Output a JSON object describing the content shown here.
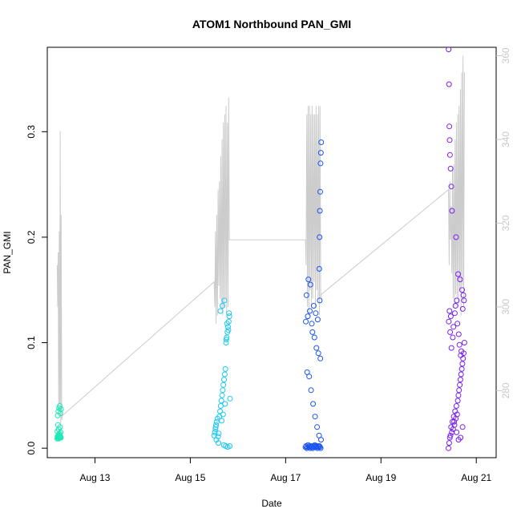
{
  "chart_data": {
    "type": "scatter",
    "title": "ATOM1 Northbound PAN_GMI",
    "xlabel": "Date",
    "ylabel": "PAN_GMI",
    "y2label": "",
    "x_range": [
      "2019-08-12 00:00",
      "2019-08-21 10:00"
    ],
    "ylim": [
      -0.009,
      0.38
    ],
    "y2lim": [
      264,
      362
    ],
    "x_ticks": [
      {
        "value": "2019-08-13",
        "label": "Aug 13"
      },
      {
        "value": "2019-08-15",
        "label": "Aug 15"
      },
      {
        "value": "2019-08-17",
        "label": "Aug 17"
      },
      {
        "value": "2019-08-19",
        "label": "Aug 19"
      },
      {
        "value": "2019-08-21",
        "label": "Aug 21"
      }
    ],
    "y_ticks": [
      {
        "value": 0.0,
        "label": "0.0"
      },
      {
        "value": 0.1,
        "label": "0.1"
      },
      {
        "value": 0.2,
        "label": "0.2"
      },
      {
        "value": 0.3,
        "label": "0.3"
      }
    ],
    "y2_ticks": [
      {
        "value": 280,
        "label": "280"
      },
      {
        "value": 300,
        "label": "300"
      },
      {
        "value": 320,
        "label": "320"
      },
      {
        "value": 340,
        "label": "340"
      },
      {
        "value": 360,
        "label": "360"
      }
    ],
    "grid": false,
    "series": [
      {
        "marker": "open-circle",
        "color": "#1de9b6",
        "x": [
          "2019-08-12 05:00",
          "2019-08-12 05:10",
          "2019-08-12 05:20",
          "2019-08-12 05:30",
          "2019-08-12 05:40",
          "2019-08-12 05:50",
          "2019-08-12 06:00",
          "2019-08-12 06:10",
          "2019-08-12 06:20",
          "2019-08-12 06:30",
          "2019-08-12 06:40",
          "2019-08-12 06:50",
          "2019-08-12 05:05",
          "2019-08-12 05:25",
          "2019-08-12 05:45",
          "2019-08-12 06:05",
          "2019-08-12 06:25",
          "2019-08-12 06:45",
          "2019-08-12 05:15",
          "2019-08-12 05:35",
          "2019-08-12 05:55",
          "2019-08-12 06:15",
          "2019-08-12 06:35",
          "2019-08-12 06:55"
        ],
        "y": [
          0.009,
          0.011,
          0.01,
          0.012,
          0.009,
          0.013,
          0.01,
          0.011,
          0.012,
          0.01,
          0.011,
          0.01,
          0.016,
          0.022,
          0.018,
          0.014,
          0.02,
          0.015,
          0.031,
          0.035,
          0.038,
          0.04,
          0.033,
          0.037
        ]
      },
      {
        "marker": "open-circle",
        "color": "#1ec8f0",
        "x": [
          "2019-08-15 12:00",
          "2019-08-15 12:20",
          "2019-08-15 12:40",
          "2019-08-15 13:00",
          "2019-08-15 13:20",
          "2019-08-15 13:40",
          "2019-08-15 14:00",
          "2019-08-15 14:20",
          "2019-08-15 14:40",
          "2019-08-15 15:00",
          "2019-08-15 15:20",
          "2019-08-15 15:40",
          "2019-08-15 16:00",
          "2019-08-15 16:20",
          "2019-08-15 16:40",
          "2019-08-15 17:00",
          "2019-08-15 17:20",
          "2019-08-15 17:40",
          "2019-08-15 18:00",
          "2019-08-15 18:20",
          "2019-08-15 18:40",
          "2019-08-15 19:00",
          "2019-08-15 19:20",
          "2019-08-15 19:40",
          "2019-08-15 15:10",
          "2019-08-15 16:10",
          "2019-08-15 17:10",
          "2019-08-15 18:10",
          "2019-08-15 19:10",
          "2019-08-15 20:00",
          "2019-08-15 13:10",
          "2019-08-15 14:10",
          "2019-08-15 16:50",
          "2019-08-15 17:50",
          "2019-08-15 18:50",
          "2019-08-15 19:50",
          "2019-08-15 12:50",
          "2019-08-15 15:50",
          "2019-08-15 16:30",
          "2019-08-15 17:30",
          "2019-08-15 18:30",
          "2019-08-15 19:30"
        ],
        "y": [
          0.012,
          0.015,
          0.018,
          0.022,
          0.025,
          0.028,
          0.011,
          0.014,
          0.03,
          0.035,
          0.04,
          0.045,
          0.05,
          0.055,
          0.06,
          0.065,
          0.07,
          0.075,
          0.1,
          0.105,
          0.11,
          0.115,
          0.12,
          0.125,
          0.13,
          0.135,
          0.14,
          0.103,
          0.112,
          0.047,
          0.008,
          0.005,
          0.003,
          0.002,
          0.001,
          0.002,
          0.02,
          0.026,
          0.032,
          0.042,
          0.118,
          0.128
        ]
      },
      {
        "marker": "open-circle",
        "color": "#1a55f0",
        "x": [
          "2019-08-17 10:00",
          "2019-08-17 10:20",
          "2019-08-17 10:40",
          "2019-08-17 11:00",
          "2019-08-17 11:20",
          "2019-08-17 11:40",
          "2019-08-17 12:00",
          "2019-08-17 12:20",
          "2019-08-17 12:40",
          "2019-08-17 13:00",
          "2019-08-17 13:20",
          "2019-08-17 13:40",
          "2019-08-17 14:00",
          "2019-08-17 14:20",
          "2019-08-17 14:40",
          "2019-08-17 15:00",
          "2019-08-17 15:20",
          "2019-08-17 15:40",
          "2019-08-17 16:00",
          "2019-08-17 16:20",
          "2019-08-17 16:40",
          "2019-08-17 17:00",
          "2019-08-17 17:20",
          "2019-08-17 17:40",
          "2019-08-17 10:10",
          "2019-08-17 11:10",
          "2019-08-17 12:10",
          "2019-08-17 13:10",
          "2019-08-17 14:10",
          "2019-08-17 15:10",
          "2019-08-17 16:10",
          "2019-08-17 17:10",
          "2019-08-17 10:30",
          "2019-08-17 11:30",
          "2019-08-17 12:30",
          "2019-08-17 13:30",
          "2019-08-17 14:30",
          "2019-08-17 15:30",
          "2019-08-17 16:30",
          "2019-08-17 17:30",
          "2019-08-17 10:50",
          "2019-08-17 11:50",
          "2019-08-17 12:50",
          "2019-08-17 13:50",
          "2019-08-17 14:50",
          "2019-08-17 15:50",
          "2019-08-17 16:50",
          "2019-08-17 17:50",
          "2019-08-17 16:55",
          "2019-08-17 17:05",
          "2019-08-17 17:15",
          "2019-08-17 17:25",
          "2019-08-17 17:35",
          "2019-08-17 17:45",
          "2019-08-17 17:55"
        ],
        "y": [
          0.001,
          0.002,
          0.0,
          0.001,
          0.003,
          0.001,
          0.002,
          0.0,
          0.001,
          0.002,
          0.001,
          0.0,
          0.001,
          0.002,
          0.003,
          0.001,
          0.002,
          0.001,
          0.0,
          0.002,
          0.001,
          0.002,
          0.001,
          0.0,
          0.12,
          0.125,
          0.13,
          0.118,
          0.135,
          0.128,
          0.122,
          0.14,
          0.145,
          0.16,
          0.155,
          0.11,
          0.105,
          0.095,
          0.09,
          0.085,
          0.072,
          0.068,
          0.055,
          0.042,
          0.03,
          0.02,
          0.012,
          0.008,
          0.17,
          0.2,
          0.225,
          0.243,
          0.27,
          0.28,
          0.29
        ]
      },
      {
        "marker": "open-circle",
        "color": "#7a1ff0",
        "x": [
          "2019-08-20 10:00",
          "2019-08-20 10:20",
          "2019-08-20 10:40",
          "2019-08-20 11:00",
          "2019-08-20 11:20",
          "2019-08-20 11:40",
          "2019-08-20 12:00",
          "2019-08-20 12:20",
          "2019-08-20 12:40",
          "2019-08-20 13:00",
          "2019-08-20 13:20",
          "2019-08-20 13:40",
          "2019-08-20 14:00",
          "2019-08-20 14:20",
          "2019-08-20 14:40",
          "2019-08-20 15:00",
          "2019-08-20 15:20",
          "2019-08-20 15:40",
          "2019-08-20 16:00",
          "2019-08-20 16:20",
          "2019-08-20 16:40",
          "2019-08-20 17:00",
          "2019-08-20 17:20",
          "2019-08-20 17:40",
          "2019-08-20 18:00",
          "2019-08-20 10:10",
          "2019-08-20 10:30",
          "2019-08-20 10:50",
          "2019-08-20 11:10",
          "2019-08-20 11:30",
          "2019-08-20 12:10",
          "2019-08-20 12:30",
          "2019-08-20 13:10",
          "2019-08-20 13:30",
          "2019-08-20 14:10",
          "2019-08-20 14:30",
          "2019-08-20 15:10",
          "2019-08-20 15:30",
          "2019-08-20 16:10",
          "2019-08-20 16:30",
          "2019-08-20 17:10",
          "2019-08-20 17:30",
          "2019-08-20 10:05",
          "2019-08-20 10:15",
          "2019-08-20 10:25",
          "2019-08-20 10:35",
          "2019-08-20 10:45",
          "2019-08-20 11:05",
          "2019-08-20 11:25",
          "2019-08-20 11:45",
          "2019-08-20 13:50",
          "2019-08-20 14:50",
          "2019-08-20 15:50",
          "2019-08-20 16:50",
          "2019-08-20 17:50",
          "2019-08-20 12:50",
          "2019-08-20 14:05",
          "2019-08-20 15:05",
          "2019-08-20 16:05",
          "2019-08-20 17:05"
        ],
        "y": [
          0.0,
          0.005,
          0.01,
          0.012,
          0.02,
          0.015,
          0.025,
          0.018,
          0.03,
          0.022,
          0.035,
          0.028,
          0.04,
          0.032,
          0.045,
          0.05,
          0.055,
          0.06,
          0.065,
          0.07,
          0.075,
          0.08,
          0.085,
          0.09,
          0.1,
          0.12,
          0.13,
          0.11,
          0.125,
          0.095,
          0.105,
          0.115,
          0.128,
          0.135,
          0.14,
          0.118,
          0.108,
          0.098,
          0.088,
          0.092,
          0.132,
          0.145,
          0.378,
          0.345,
          0.305,
          0.292,
          0.278,
          0.265,
          0.248,
          0.225,
          0.2,
          0.165,
          0.16,
          0.15,
          0.14,
          0.025,
          0.015,
          0.008,
          0.01,
          0.02
        ]
      }
    ],
    "line_series": {
      "axis": "right",
      "color": "#cccccc",
      "x": [
        "2019-08-12 05:00",
        "2019-08-12 05:15",
        "2019-08-12 05:30",
        "2019-08-12 05:45",
        "2019-08-12 06:00",
        "2019-08-12 06:15",
        "2019-08-12 06:30",
        "2019-08-12 06:45",
        "2019-08-12 07:00",
        "2019-08-12 07:15",
        "2019-08-12 07:30",
        "2019-08-15 12:00",
        "2019-08-15 12:20",
        "2019-08-15 12:40",
        "2019-08-15 13:00",
        "2019-08-15 13:20",
        "2019-08-15 13:40",
        "2019-08-15 14:00",
        "2019-08-15 14:20",
        "2019-08-15 14:40",
        "2019-08-15 15:00",
        "2019-08-15 15:20",
        "2019-08-15 15:40",
        "2019-08-15 16:00",
        "2019-08-15 16:20",
        "2019-08-15 16:40",
        "2019-08-15 17:00",
        "2019-08-15 17:20",
        "2019-08-15 17:40",
        "2019-08-15 18:00",
        "2019-08-15 18:20",
        "2019-08-15 18:40",
        "2019-08-15 19:00",
        "2019-08-15 19:20",
        "2019-08-15 19:40",
        "2019-08-15 20:00",
        "2019-08-17 10:00",
        "2019-08-17 10:20",
        "2019-08-17 10:40",
        "2019-08-17 11:00",
        "2019-08-17 11:20",
        "2019-08-17 11:40",
        "2019-08-17 12:00",
        "2019-08-17 12:20",
        "2019-08-17 12:40",
        "2019-08-17 13:00",
        "2019-08-17 13:20",
        "2019-08-17 13:40",
        "2019-08-17 14:00",
        "2019-08-17 14:20",
        "2019-08-17 14:40",
        "2019-08-17 15:00",
        "2019-08-17 15:20",
        "2019-08-17 15:40",
        "2019-08-17 16:00",
        "2019-08-17 16:20",
        "2019-08-17 16:40",
        "2019-08-17 17:00",
        "2019-08-17 17:20",
        "2019-08-17 17:40",
        "2019-08-17 18:00",
        "2019-08-20 10:00",
        "2019-08-20 10:20",
        "2019-08-20 10:40",
        "2019-08-20 11:00",
        "2019-08-20 11:20",
        "2019-08-20 11:40",
        "2019-08-20 12:00",
        "2019-08-20 12:20",
        "2019-08-20 12:40",
        "2019-08-20 13:00",
        "2019-08-20 13:20",
        "2019-08-20 13:40",
        "2019-08-20 14:00",
        "2019-08-20 14:20",
        "2019-08-20 14:40",
        "2019-08-20 15:00",
        "2019-08-20 15:20",
        "2019-08-20 15:40",
        "2019-08-20 16:00",
        "2019-08-20 16:20",
        "2019-08-20 16:40",
        "2019-08-20 17:00",
        "2019-08-20 17:20",
        "2019-08-20 17:40",
        "2019-08-20 18:00"
      ],
      "y": [
        310,
        300,
        313,
        275,
        318,
        277,
        342,
        272,
        322,
        273,
        274,
        306,
        300,
        318,
        296,
        322,
        298,
        328,
        305,
        330,
        302,
        336,
        300,
        340,
        298,
        344,
        300,
        346,
        302,
        348,
        298,
        344,
        300,
        350,
        316,
        316,
        316,
        310,
        346,
        300,
        348,
        298,
        348,
        304,
        346,
        300,
        348,
        302,
        346,
        306,
        346,
        300,
        348,
        304,
        346,
        302,
        348,
        298,
        348,
        302,
        303,
        328,
        310,
        330,
        316,
        324,
        308,
        333,
        302,
        334,
        300,
        340,
        303,
        344,
        302,
        346,
        300,
        348,
        304,
        352,
        298,
        356,
        305,
        360,
        300,
        356
      ]
    }
  }
}
